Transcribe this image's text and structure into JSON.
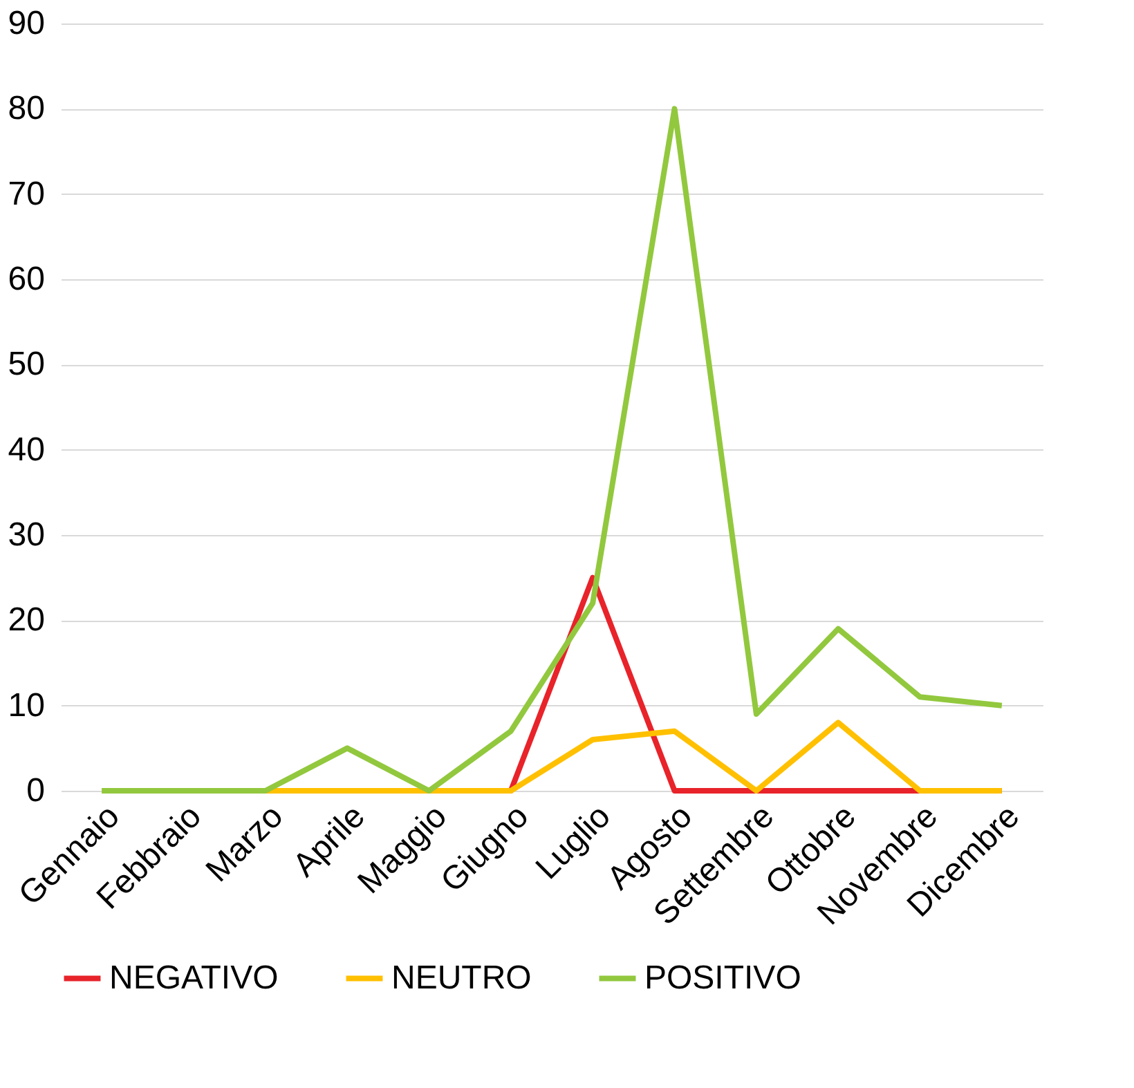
{
  "chart_data": {
    "type": "line",
    "categories": [
      "Gennaio",
      "Febbraio",
      "Marzo",
      "Aprile",
      "Maggio",
      "Giugno",
      "Luglio",
      "Agosto",
      "Settembre",
      "Ottobre",
      "Novembre",
      "Dicembre"
    ],
    "series": [
      {
        "name": "NEGATIVO",
        "color": "#e8232a",
        "values": [
          null,
          null,
          null,
          null,
          0,
          0,
          25,
          0,
          0,
          0,
          0,
          0
        ]
      },
      {
        "name": "NEUTRO",
        "color": "#ffc000",
        "values": [
          0,
          0,
          0,
          0,
          0,
          0,
          6,
          7,
          0,
          8,
          0,
          0
        ]
      },
      {
        "name": "POSITIVO",
        "color": "#92c83e",
        "values": [
          0,
          0,
          0,
          5,
          0,
          7,
          22,
          80,
          9,
          19,
          11,
          10
        ]
      }
    ],
    "ylim": [
      0,
      90
    ],
    "yticks": [
      0,
      10,
      20,
      30,
      40,
      50,
      60,
      70,
      80,
      90
    ],
    "grid": "y",
    "legend": "bottom",
    "marker": "none",
    "line_style": "solid"
  }
}
